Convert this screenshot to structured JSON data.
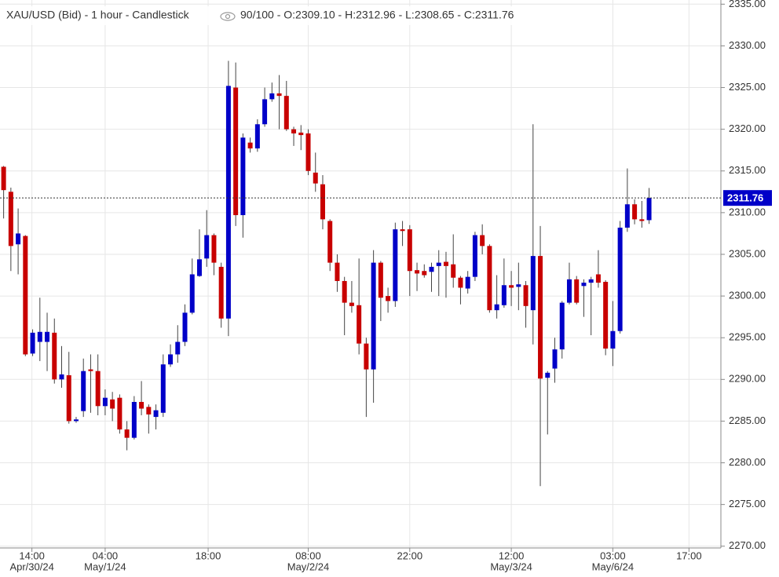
{
  "chart_data": {
    "type": "candlestick",
    "title": "XAU/USD (Bid) - 1 hour - Candlestick",
    "subtitle": "90/100 - O:2309.10 - H:2312.96 - L:2308.65 - C:2311.76",
    "up_color": "#0000c8",
    "down_color": "#c80000",
    "grid": true,
    "ylim": [
      2269.6,
      2335.5
    ],
    "yticks": [
      {
        "value": 2270,
        "label": "2270.00"
      },
      {
        "value": 2275,
        "label": "2275.00"
      },
      {
        "value": 2280,
        "label": "2280.00"
      },
      {
        "value": 2285,
        "label": "2285.00"
      },
      {
        "value": 2290,
        "label": "2290.00"
      },
      {
        "value": 2295,
        "label": "2295.00"
      },
      {
        "value": 2300,
        "label": "2300.00"
      },
      {
        "value": 2305,
        "label": "2305.00"
      },
      {
        "value": 2310,
        "label": "2310.00"
      },
      {
        "value": 2315,
        "label": "2315.00"
      },
      {
        "value": 2320,
        "label": "2320.00"
      },
      {
        "value": 2325,
        "label": "2325.00"
      },
      {
        "value": 2330,
        "label": "2330.00"
      },
      {
        "value": 2335,
        "label": "2335.00"
      }
    ],
    "xlim": [
      -0.5,
      98.9
    ],
    "xticks": [
      {
        "value": 3.9,
        "label": "14:00",
        "date": "Apr/30/24"
      },
      {
        "value": 14,
        "label": "04:00",
        "date": "May/1/24"
      },
      {
        "value": 28.2,
        "label": "18:00"
      },
      {
        "value": 42,
        "label": "08:00",
        "date": "May/2/24"
      },
      {
        "value": 56,
        "label": "22:00"
      },
      {
        "value": 70,
        "label": "12:00",
        "date": "May/3/24"
      },
      {
        "value": 84,
        "label": "03:00",
        "date": "May/6/24"
      },
      {
        "value": 94.5,
        "label": "17:00"
      }
    ],
    "last_price": 2311.76,
    "open": [
      2315.5,
      2312.5,
      2306.2,
      2307.2,
      2293.1,
      2294.5,
      2294.5,
      2295.6,
      2290,
      2290.5,
      2285,
      2286.2,
      2291.2,
      2291,
      2286.8,
      2287.6,
      2287.8,
      2284,
      2283,
      2287.3,
      2286.7,
      2285.5,
      2286,
      2291.8,
      2293,
      2294.5,
      2298,
      2302.4,
      2304.5,
      2307.3,
      2303.5,
      2297.3,
      2325,
      2309.7,
      2318.4,
      2317.7,
      2320.6,
      2323.6,
      2324.3,
      2324,
      2320,
      2319.6,
      2319.5,
      2314.8,
      2313.4,
      2309,
      2304,
      2301.8,
      2299.2,
      2298.9,
      2294.3,
      2291.2,
      2304,
      2300,
      2299.4,
      2308,
      2308,
      2303.1,
      2303,
      2302.9,
      2303.6,
      2304.1,
      2303.8,
      2302.2,
      2300.9,
      2302.3,
      2307.3,
      2306,
      2298.3,
      2298.9,
      2301.3,
      2301.1,
      2301.3,
      2298.3,
      2304.8,
      2290.2,
      2291.3,
      2293.6,
      2299.2,
      2302,
      2301.2,
      2301.6,
      2302.6,
      2301.7,
      2293.7,
      2295.8,
      2308.2,
      2311,
      2309.2,
      2309.1
    ],
    "high": [
      2315.6,
      2313,
      2310.5,
      2307.3,
      2296,
      2299.8,
      2298,
      2297.3,
      2294,
      2293.3,
      2285.5,
      2292.5,
      2293,
      2293,
      2288.8,
      2288.5,
      2288.2,
      2285,
      2288,
      2289.8,
      2287,
      2287,
      2293,
      2294.2,
      2296.5,
      2299,
      2304.5,
      2308,
      2310.3,
      2307.5,
      2304,
      2328.2,
      2328,
      2319.5,
      2319,
      2321.2,
      2325,
      2325.6,
      2326.5,
      2325.8,
      2320.3,
      2320.5,
      2320,
      2317.2,
      2314.5,
      2309.2,
      2305,
      2302.3,
      2301.8,
      2304.5,
      2295,
      2305.5,
      2304.2,
      2301,
      2308.8,
      2309,
      2308.5,
      2304,
      2303.8,
      2304,
      2305.5,
      2305.3,
      2307.4,
      2302.4,
      2303,
      2307.7,
      2308.6,
      2306.2,
      2302.5,
      2304.5,
      2303,
      2304,
      2301.8,
      2320.6,
      2308.4,
      2291,
      2295,
      2299.4,
      2304,
      2302.4,
      2302,
      2302.3,
      2305.5,
      2301.9,
      2299.4,
      2309,
      2315.3,
      2311.6,
      2311.4,
      2312.96
    ],
    "low": [
      2309.3,
      2303,
      2302.6,
      2292.8,
      2292.8,
      2292.2,
      2291,
      2289.5,
      2289,
      2284.7,
      2284.8,
      2285.5,
      2286,
      2285.7,
      2285.7,
      2285,
      2283.5,
      2281.5,
      2282.8,
      2285.7,
      2283.5,
      2284,
      2285.5,
      2291.5,
      2292,
      2294,
      2297.8,
      2302.3,
      2303.5,
      2302.5,
      2296.2,
      2295.2,
      2308.4,
      2307,
      2317.2,
      2317.3,
      2320.3,
      2323.3,
      2320,
      2319.8,
      2318,
      2317.5,
      2314.5,
      2312.5,
      2308,
      2303,
      2300.5,
      2295.3,
      2298,
      2293,
      2285.5,
      2287.2,
      2297,
      2298,
      2298.7,
      2306,
      2300,
      2300.6,
      2302.2,
      2300.5,
      2300,
      2299.8,
      2301,
      2299,
      2300.3,
      2301.8,
      2305,
      2298,
      2297.3,
      2298.6,
      2298.8,
      2298.3,
      2296.2,
      2294.2,
      2277.2,
      2283.4,
      2289.6,
      2292.5,
      2299,
      2299,
      2297.5,
      2295.3,
      2301,
      2292.9,
      2291.6,
      2295.5,
      2307.7,
      2308.6,
      2308.2,
      2308.65
    ],
    "close": [
      2312.7,
      2306,
      2307.5,
      2293,
      2295.6,
      2295.7,
      2295.7,
      2290,
      2290.6,
      2285,
      2285.2,
      2291,
      2291,
      2286.8,
      2287.8,
      2286.5,
      2284,
      2283,
      2287.3,
      2286.5,
      2285.8,
      2286.3,
      2291.8,
      2293,
      2294.5,
      2298,
      2302.6,
      2304.4,
      2307.3,
      2304,
      2297.3,
      2325.2,
      2309.7,
      2319,
      2317.7,
      2320.6,
      2323.6,
      2324.3,
      2324,
      2320,
      2319.5,
      2319.3,
      2315,
      2313.5,
      2309.2,
      2304,
      2301.8,
      2299.2,
      2298.8,
      2294.3,
      2291.2,
      2304,
      2299.8,
      2299.4,
      2308,
      2307.8,
      2303,
      2302.7,
      2302.5,
      2303.5,
      2304,
      2303.6,
      2302.2,
      2301,
      2302.3,
      2307.3,
      2306,
      2298.3,
      2299,
      2301.3,
      2301,
      2301.4,
      2298.8,
      2304.8,
      2290.1,
      2290.8,
      2293.6,
      2299.2,
      2302,
      2299.2,
      2301.6,
      2302,
      2301.6,
      2293.7,
      2295.8,
      2308.2,
      2311,
      2309.2,
      2309,
      2311.76
    ]
  }
}
